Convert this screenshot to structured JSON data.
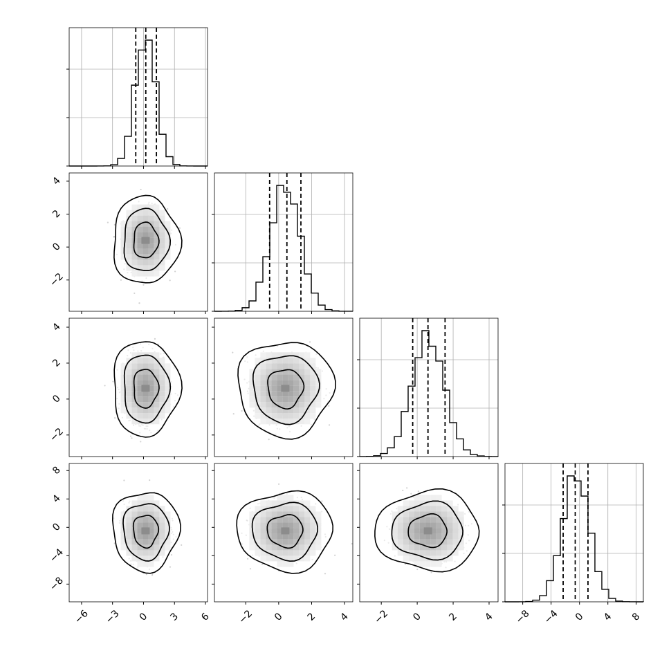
{
  "chart_data": {
    "type": "corner",
    "parameters": [
      {
        "index": 0,
        "range": [
          -7.2,
          6.2
        ],
        "ticks": [
          -6,
          -3,
          0,
          3,
          6
        ],
        "tick_labels": [
          "−6",
          "−3",
          "0",
          "3",
          "6"
        ],
        "std": 1.0,
        "mean": 0.2,
        "quantiles": [
          -0.75,
          0.22,
          1.25
        ]
      },
      {
        "index": 1,
        "range": [
          -3.9,
          4.5
        ],
        "ticks": [
          -2,
          0,
          2,
          4
        ],
        "tick_labels": [
          "−2",
          "0",
          "2",
          "4"
        ],
        "std": 0.9,
        "mean": 0.4,
        "quantiles": [
          -0.55,
          0.5,
          1.35
        ]
      },
      {
        "index": 2,
        "range": [
          -3.2,
          4.5
        ],
        "ticks": [
          -2,
          0,
          2,
          4
        ],
        "tick_labels": [
          "−2",
          "0",
          "2",
          "4"
        ],
        "std": 0.9,
        "mean": 0.6,
        "quantiles": [
          -0.25,
          0.6,
          1.55
        ]
      },
      {
        "index": 3,
        "range": [
          -10.5,
          9.0
        ],
        "ticks": [
          -8,
          -4,
          0,
          4,
          8
        ],
        "tick_labels": [
          "−8",
          "−4",
          "0",
          "4",
          "8"
        ],
        "std": 1.9,
        "mean": -0.5,
        "quantiles": [
          -2.3,
          -0.6,
          1.2
        ]
      }
    ],
    "grid": true,
    "quantile_line_style": "dashed",
    "contour_levels": 3,
    "colors": {
      "hist_line": "#000000",
      "contour": "#000000",
      "scatter": "#9a9a9a",
      "grid": "#b0b0b0",
      "density_dark": "#000000"
    }
  }
}
